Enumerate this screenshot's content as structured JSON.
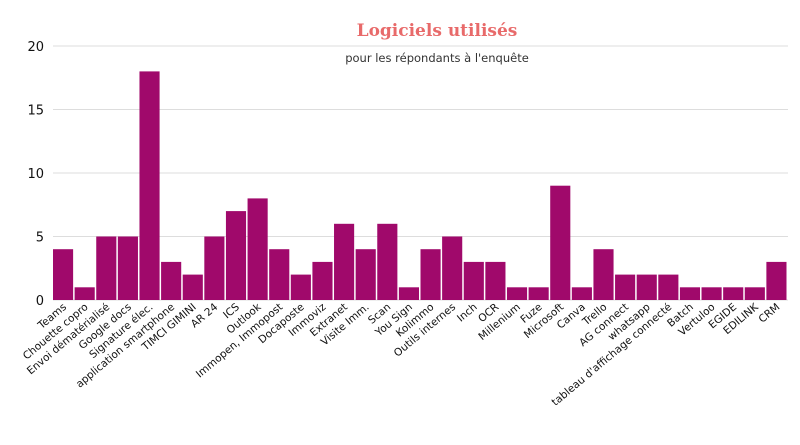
{
  "colors": {
    "bar": "#a0096b",
    "title": "#e86a6a",
    "grid": "#dddddd"
  },
  "chart_data": {
    "type": "bar",
    "title": "Logiciels utilisés",
    "subtitle": "pour les répondants à l'enquête",
    "xlabel": "",
    "ylabel": "",
    "ylim": [
      0,
      20
    ],
    "yticks": [
      0,
      5,
      10,
      15,
      20
    ],
    "grid": true,
    "legend": "none",
    "categories": [
      "Teams",
      "Chouette copro",
      "Envoi dématérialisé",
      "Google docs",
      "Signature élec.",
      "application smartphone",
      "TIMCI GIMINI",
      "AR 24",
      "ICS",
      "Outlook",
      "Immopen, Immopost",
      "Docaposte",
      "Immoviz",
      "Extranet",
      "Visite Imm.",
      "Scan",
      "You Sign",
      "Kolimmo",
      "Outils internes",
      "Inch",
      "OCR",
      "Millenium",
      "Fuze",
      "Microsoft",
      "Canva",
      "Trello",
      "AG connect",
      "whatsapp",
      "tableau d'affichage connecté",
      "Batch",
      "Vertuloo",
      "EGIDE",
      "EDILINK",
      "CRM"
    ],
    "values": [
      4,
      1,
      5,
      5,
      18,
      3,
      2,
      5,
      7,
      8,
      4,
      2,
      3,
      6,
      4,
      6,
      1,
      4,
      5,
      3,
      3,
      1,
      1,
      9,
      1,
      4,
      2,
      2,
      2,
      1,
      1,
      1,
      1,
      3
    ]
  }
}
